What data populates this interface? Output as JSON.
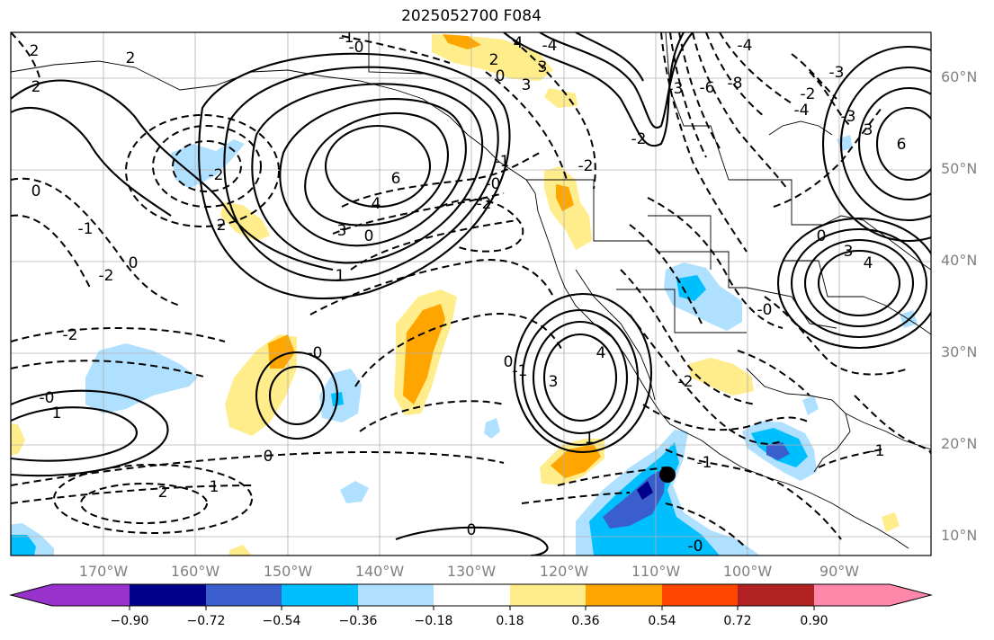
{
  "title": "2025052700 F084",
  "lat_labels": [
    "60°N",
    "50°N",
    "40°N",
    "30°N",
    "20°N",
    "10°N"
  ],
  "lon_labels": [
    "170°W",
    "160°W",
    "150°W",
    "140°W",
    "130°W",
    "120°W",
    "110°W",
    "100°W",
    "90°W"
  ],
  "colorbar": {
    "colors": [
      "#9932cc",
      "#00008b",
      "#3a5fcd",
      "#00bfff",
      "#b0e0ff",
      "#ffffff",
      "#ffec8b",
      "#ffa500",
      "#ff4500",
      "#b22222",
      "#ff88aa"
    ],
    "tick_labels": [
      "−0.90",
      "−0.72",
      "−0.54",
      "−0.36",
      "−0.18",
      "0.18",
      "0.36",
      "0.54",
      "0.72",
      "0.90"
    ]
  },
  "contour_labels": [
    "2",
    "2",
    "-1",
    "-0",
    "2",
    "-2",
    "0",
    "2",
    "-1",
    "-2",
    "0",
    "-2",
    "-0",
    "1",
    "0",
    "1",
    "6",
    "4",
    "3",
    "0",
    "1",
    "4",
    "3",
    "2",
    "3",
    "0",
    "-2",
    "-2",
    "-1",
    "-0",
    "-2",
    "-3",
    "-4",
    "-3",
    "-2",
    "-4",
    "-6",
    "-8",
    "-4",
    "3",
    "6",
    "3",
    "4",
    "0",
    "-3",
    "-0",
    "0",
    "3",
    "4",
    "-1",
    "-0",
    "-2",
    "-1",
    "0",
    "-0",
    "2",
    "-1",
    "1"
  ],
  "marker": {
    "label": "storm-center",
    "lon": -108.5,
    "lat": 16.8
  }
}
